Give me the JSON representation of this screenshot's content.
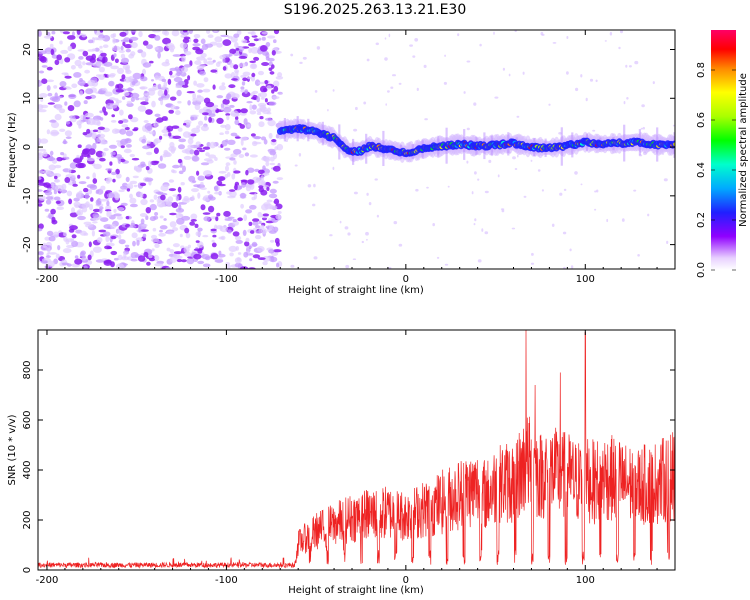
{
  "title": "S196.2025.263.13.21.E30",
  "colors": {
    "snr_line": "#ee2222",
    "axis": "#000000"
  },
  "chart_data": [
    {
      "type": "heatmap",
      "title": "S196.2025.263.13.21.E30",
      "xlabel": "Height of straight line (km)",
      "ylabel": "Frequency (Hz)",
      "xlim": [
        -205,
        150
      ],
      "ylim": [
        -25,
        24
      ],
      "xticks": [
        -200,
        -100,
        0,
        100
      ],
      "xtick_labels": [
        "-200",
        "-100",
        "0",
        "100"
      ],
      "yticks": [
        20,
        10,
        0,
        -10,
        -20
      ],
      "ytick_labels": [
        "20",
        "10",
        "0",
        "-10",
        "-20"
      ],
      "noise_region_x": [
        -205,
        -70
      ],
      "signal_track": {
        "x": [
          -70,
          -60,
          -50,
          -40,
          -35,
          -30,
          -25,
          -20,
          -10,
          0,
          5,
          10,
          20,
          30,
          40,
          50,
          60,
          70,
          80,
          90,
          100,
          110,
          120,
          130,
          140,
          150
        ],
        "freq": [
          3.5,
          3.8,
          3.2,
          1.8,
          0.2,
          -1.0,
          -0.8,
          0.2,
          -0.5,
          -1.2,
          -0.8,
          -0.3,
          0.2,
          0.6,
          0.2,
          0.4,
          0.8,
          0.0,
          -0.2,
          0.3,
          1.0,
          0.6,
          0.8,
          1.0,
          0.5,
          0.4
        ]
      },
      "colorbar": {
        "label": "Normalized spectral amplitude",
        "range": [
          0,
          0.96
        ],
        "ticks": [
          0.0,
          0.2,
          0.4,
          0.6,
          0.8
        ],
        "tick_labels": [
          "0.0",
          "0.2",
          "0.4",
          "0.6",
          "0.8"
        ],
        "colormap": "rainbow (white-violet-blue-cyan-green-yellow-red-magenta)"
      }
    },
    {
      "type": "line",
      "xlabel": "Height of straight line (km)",
      "ylabel": "SNR (10 * v/v)",
      "xlim": [
        -205,
        150
      ],
      "ylim": [
        0,
        960
      ],
      "xticks": [
        -200,
        -100,
        0,
        100
      ],
      "xtick_labels": [
        "-200",
        "-100",
        "0",
        "100"
      ],
      "yticks": [
        0,
        200,
        400,
        600,
        800
      ],
      "ytick_labels": [
        "0",
        "200",
        "400",
        "600",
        "800"
      ],
      "series": [
        {
          "name": "SNR",
          "envelope_x": [
            -205,
            -170,
            -130,
            -90,
            -62,
            -60,
            -50,
            -40,
            -30,
            -20,
            -10,
            0,
            10,
            20,
            30,
            35,
            40,
            45,
            50,
            55,
            60,
            65,
            68,
            70,
            75,
            80,
            85,
            90,
            95,
            100,
            105,
            110,
            120,
            130,
            140,
            150
          ],
          "envelope_y": [
            25,
            25,
            25,
            25,
            25,
            160,
            230,
            270,
            310,
            330,
            340,
            320,
            360,
            400,
            450,
            470,
            480,
            440,
            500,
            520,
            520,
            600,
            640,
            600,
            560,
            600,
            560,
            560,
            520,
            540,
            520,
            560,
            520,
            500,
            520,
            560
          ],
          "spikes": [
            {
              "x": 67,
              "y": 960
            },
            {
              "x": 72,
              "y": 740
            },
            {
              "x": 86,
              "y": 790
            },
            {
              "x": 100,
              "y": 950
            }
          ]
        }
      ]
    }
  ]
}
